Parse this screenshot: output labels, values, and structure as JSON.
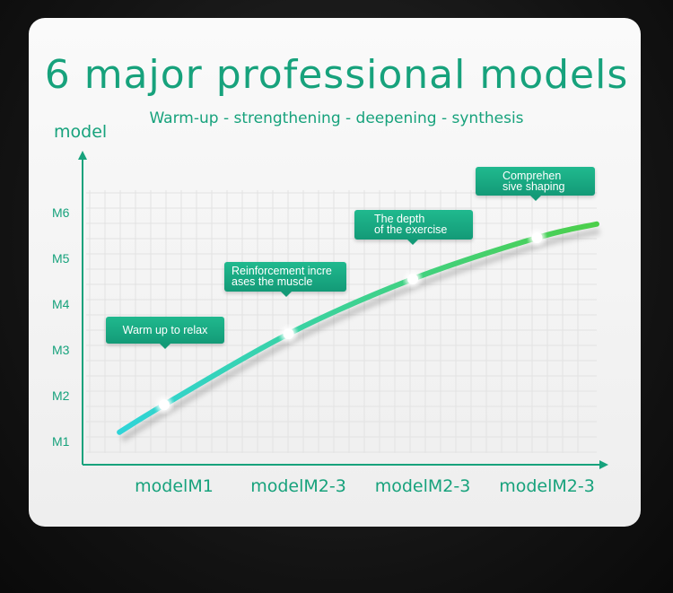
{
  "title": "6 major professional models",
  "subtitle": "Warm-up - strengthening - deepening - synthesis",
  "colors": {
    "accent": "#17a27c",
    "curve_start": "#2fd4d8",
    "curve_end": "#4ccf4a",
    "callout": "#18a882",
    "background": "#141414"
  },
  "chart_data": {
    "type": "line",
    "title": "6 major professional models",
    "subtitle": "Warm-up - strengthening - deepening - synthesis",
    "ylabel": "model",
    "xlabel": "",
    "categories": [
      "modelM1",
      "modelM2-3",
      "modelM2-3",
      "modelM2-3"
    ],
    "y_ticks": [
      "M1",
      "M2",
      "M3",
      "M4",
      "M5",
      "M6"
    ],
    "ylim": [
      1,
      6
    ],
    "grid": true,
    "series": [
      {
        "points": [
          {
            "x": -0.36,
            "y": 1.2
          },
          {
            "x": 0,
            "y": 1.8,
            "marker": true
          },
          {
            "x": 1,
            "y": 3.35,
            "marker": true
          },
          {
            "x": 2,
            "y": 4.55,
            "marker": true
          },
          {
            "x": 3,
            "y": 5.45,
            "marker": true
          },
          {
            "x": 3.48,
            "y": 5.75
          }
        ]
      }
    ],
    "annotations": [
      {
        "text": "Warm up to relax",
        "at_category": 0
      },
      {
        "text": "Reinforcement incre ases the muscle",
        "lines": [
          "Reinforcement incre",
          "ases the muscle"
        ],
        "at_category": 1
      },
      {
        "text": "The depth of the exercise",
        "lines": [
          "The depth",
          "of the exercise"
        ],
        "at_category": 2
      },
      {
        "text": "Comprehen sive shaping",
        "lines": [
          "Comprehen",
          "sive shaping"
        ],
        "at_category": 3
      }
    ]
  }
}
